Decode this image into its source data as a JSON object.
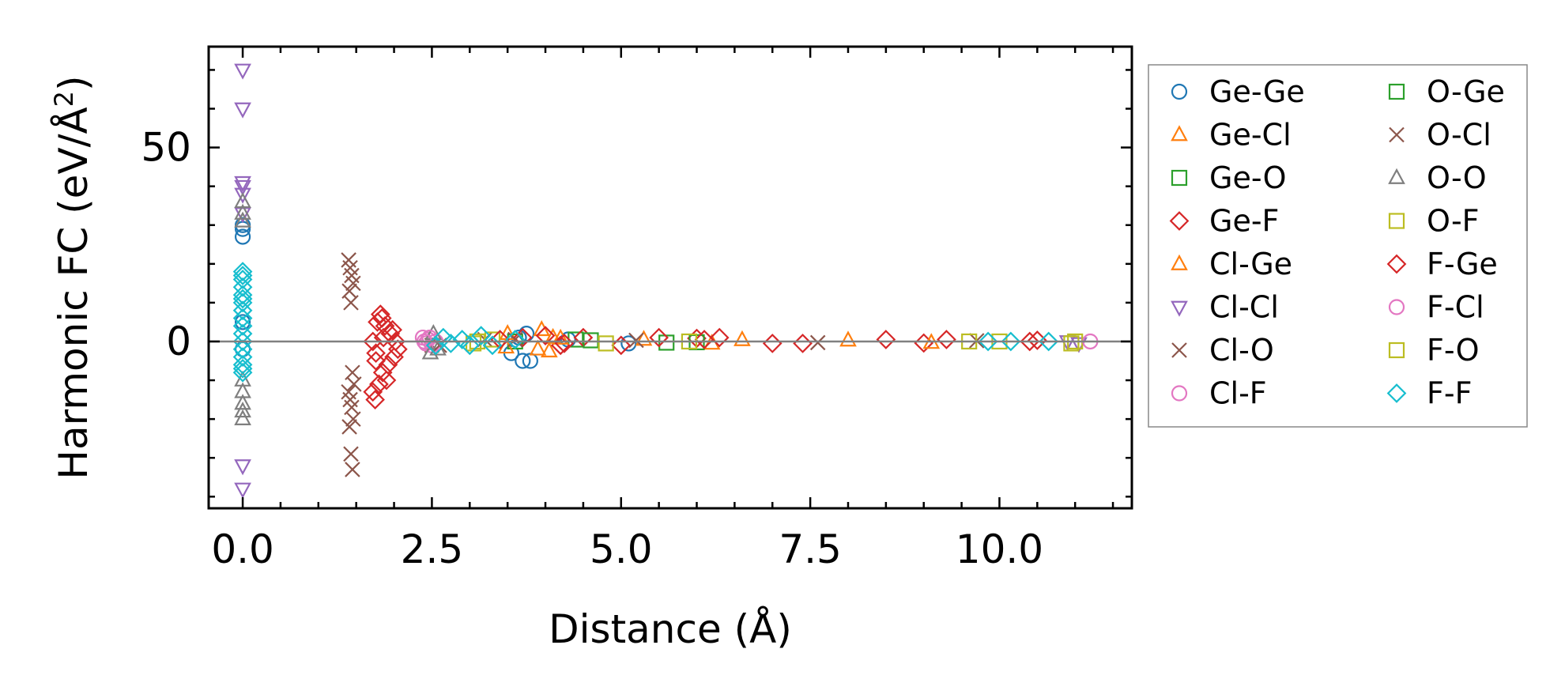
{
  "chart_data": {
    "type": "scatter",
    "title": "",
    "xlabel": "Distance (Å)",
    "ylabel_main": "Harmonic FC (eV/Å",
    "ylabel_sup": "2",
    "ylabel_close": ")",
    "xlim": [
      -0.45,
      11.75
    ],
    "ylim": [
      -43,
      76
    ],
    "xticks": [
      0.0,
      2.5,
      5.0,
      7.5,
      10.0
    ],
    "xtick_labels": [
      "0.0",
      "2.5",
      "5.0",
      "7.5",
      "10.0"
    ],
    "yticks": [
      0,
      50
    ],
    "ytick_labels": [
      "0",
      "50"
    ],
    "reference_line_y": 0,
    "legend_position": "outside-right",
    "legend_columns": 2,
    "series": [
      {
        "name": "Ge-Ge",
        "marker": "circle",
        "color": "#1f77b4",
        "points": [
          [
            0,
            27
          ],
          [
            0,
            29
          ],
          [
            0,
            30
          ],
          [
            0,
            5
          ],
          [
            0,
            -2
          ],
          [
            3.55,
            -3
          ],
          [
            3.65,
            1
          ],
          [
            3.7,
            -5
          ],
          [
            3.8,
            -5
          ],
          [
            3.75,
            2
          ],
          [
            4.3,
            0.5
          ],
          [
            5.1,
            -0.5
          ]
        ]
      },
      {
        "name": "Ge-Cl",
        "marker": "triangle-up",
        "color": "#ff7f0e",
        "points": [
          [
            3.5,
            2
          ],
          [
            3.9,
            -2
          ],
          [
            3.95,
            3
          ],
          [
            4.05,
            -2.5
          ],
          [
            4.1,
            1
          ],
          [
            5.3,
            0.5
          ],
          [
            6.2,
            -0.5
          ],
          [
            8.0,
            0.3
          ]
        ]
      },
      {
        "name": "Ge-O",
        "marker": "square",
        "color": "#2ca02c",
        "points": [
          [
            3.6,
            0
          ],
          [
            4.4,
            0.5
          ],
          [
            5.6,
            -0.3
          ]
        ]
      },
      {
        "name": "Ge-F",
        "marker": "diamond",
        "color": "#d62728",
        "points": [
          [
            1.72,
            -13
          ],
          [
            1.75,
            -15
          ],
          [
            1.8,
            -11
          ],
          [
            1.85,
            -8
          ],
          [
            1.9,
            -10
          ],
          [
            1.78,
            5
          ],
          [
            1.82,
            7
          ],
          [
            1.88,
            4
          ],
          [
            1.95,
            2
          ],
          [
            2.0,
            -4
          ],
          [
            2.05,
            -2
          ],
          [
            1.72,
            0
          ],
          [
            1.76,
            -5
          ],
          [
            1.84,
            6
          ],
          [
            1.98,
            3
          ],
          [
            3.7,
            1
          ],
          [
            4.0,
            1.5
          ],
          [
            4.2,
            -1
          ],
          [
            4.5,
            1
          ],
          [
            5.0,
            -1
          ],
          [
            6.0,
            0.8
          ],
          [
            6.3,
            1
          ],
          [
            7.0,
            -0.5
          ],
          [
            8.5,
            0.5
          ],
          [
            9.0,
            -0.4
          ],
          [
            10.5,
            0.3
          ]
        ]
      },
      {
        "name": "Cl-Ge",
        "marker": "triangle-up",
        "color": "#ff7f0e",
        "points": [
          [
            3.48,
            -1.5
          ],
          [
            4.2,
            0.8
          ],
          [
            6.6,
            0.4
          ],
          [
            9.1,
            -0.3
          ]
        ]
      },
      {
        "name": "Cl-Cl",
        "marker": "triangle-down",
        "color": "#9467bd",
        "points": [
          [
            0,
            70
          ],
          [
            0,
            60
          ],
          [
            0,
            41
          ],
          [
            0,
            40
          ],
          [
            0,
            38
          ],
          [
            0,
            33
          ],
          [
            0,
            -32
          ],
          [
            0,
            -38
          ],
          [
            10.9,
            0
          ],
          [
            11.05,
            -0.5
          ]
        ]
      },
      {
        "name": "Cl-O",
        "marker": "x",
        "color": "#8c564b",
        "points": [
          [
            1.4,
            21
          ],
          [
            1.42,
            19
          ],
          [
            1.44,
            17
          ],
          [
            1.46,
            15
          ],
          [
            1.41,
            13
          ],
          [
            1.43,
            10
          ],
          [
            1.45,
            -8
          ],
          [
            1.47,
            -11
          ],
          [
            1.4,
            -13
          ],
          [
            1.42,
            -15
          ],
          [
            1.44,
            -17
          ],
          [
            1.46,
            -20
          ],
          [
            1.41,
            -22
          ],
          [
            1.43,
            -29
          ],
          [
            1.45,
            -33
          ],
          [
            2.5,
            -1
          ],
          [
            3.6,
            0.5
          ]
        ]
      },
      {
        "name": "Cl-F",
        "marker": "circle",
        "color": "#e377c2",
        "points": [
          [
            2.38,
            1
          ],
          [
            2.42,
            -0.5
          ],
          [
            2.45,
            0.5
          ],
          [
            2.5,
            -1
          ],
          [
            2.55,
            0
          ]
        ]
      },
      {
        "name": "O-Ge",
        "marker": "square",
        "color": "#2ca02c",
        "points": [
          [
            4.6,
            0.3
          ],
          [
            6.0,
            -0.2
          ]
        ]
      },
      {
        "name": "O-Cl",
        "marker": "x",
        "color": "#8c564b",
        "points": [
          [
            2.6,
            -1
          ],
          [
            3.2,
            0.5
          ],
          [
            5.2,
            0.3
          ],
          [
            7.6,
            -0.3
          ],
          [
            9.7,
            0.2
          ]
        ]
      },
      {
        "name": "O-O",
        "marker": "triangle-up",
        "color": "#7f7f7f",
        "points": [
          [
            0,
            36
          ],
          [
            0,
            33
          ],
          [
            0,
            31
          ],
          [
            0,
            -10
          ],
          [
            0,
            -13
          ],
          [
            0,
            -16
          ],
          [
            0,
            -18
          ],
          [
            0,
            -20
          ],
          [
            2.48,
            -3
          ],
          [
            2.52,
            2
          ],
          [
            2.58,
            -2
          ]
        ]
      },
      {
        "name": "O-F",
        "marker": "square",
        "color": "#bcbd22",
        "points": [
          [
            3.1,
            0
          ],
          [
            3.3,
            0.5
          ],
          [
            4.8,
            -0.5
          ],
          [
            9.6,
            0
          ],
          [
            10.0,
            0
          ],
          [
            11.0,
            0
          ]
        ]
      },
      {
        "name": "F-Ge",
        "marker": "diamond",
        "color": "#d62728",
        "points": [
          [
            1.76,
            -3
          ],
          [
            1.86,
            1
          ],
          [
            1.92,
            -6
          ],
          [
            2.02,
            0
          ],
          [
            3.4,
            0.5
          ],
          [
            4.25,
            -0.5
          ],
          [
            5.5,
            1
          ],
          [
            6.1,
            0.5
          ],
          [
            7.4,
            -0.5
          ],
          [
            9.3,
            0.5
          ],
          [
            10.4,
            0
          ]
        ]
      },
      {
        "name": "F-Cl",
        "marker": "circle",
        "color": "#e377c2",
        "points": [
          [
            2.4,
            0
          ],
          [
            2.47,
            1
          ],
          [
            11.2,
            0
          ]
        ]
      },
      {
        "name": "F-O",
        "marker": "square",
        "color": "#bcbd22",
        "points": [
          [
            3.05,
            -0.5
          ],
          [
            5.9,
            0
          ],
          [
            10.95,
            -0.5
          ]
        ]
      },
      {
        "name": "F-F",
        "marker": "diamond",
        "color": "#17becf",
        "points": [
          [
            0,
            18
          ],
          [
            0,
            16
          ],
          [
            0,
            14
          ],
          [
            0,
            12
          ],
          [
            0,
            10
          ],
          [
            0,
            8
          ],
          [
            0,
            6
          ],
          [
            0,
            4
          ],
          [
            0,
            2
          ],
          [
            0,
            0
          ],
          [
            0,
            -2
          ],
          [
            0,
            -4
          ],
          [
            0,
            -6
          ],
          [
            0,
            -8
          ],
          [
            0,
            17
          ],
          [
            0,
            11
          ],
          [
            0,
            -7
          ],
          [
            2.55,
            -1
          ],
          [
            2.65,
            1
          ],
          [
            2.75,
            -0.5
          ],
          [
            2.9,
            0.5
          ],
          [
            3.0,
            -1
          ],
          [
            3.15,
            1.5
          ],
          [
            3.3,
            -1
          ],
          [
            3.6,
            0.5
          ],
          [
            9.85,
            0
          ],
          [
            10.15,
            0
          ],
          [
            10.65,
            0
          ]
        ]
      }
    ]
  }
}
